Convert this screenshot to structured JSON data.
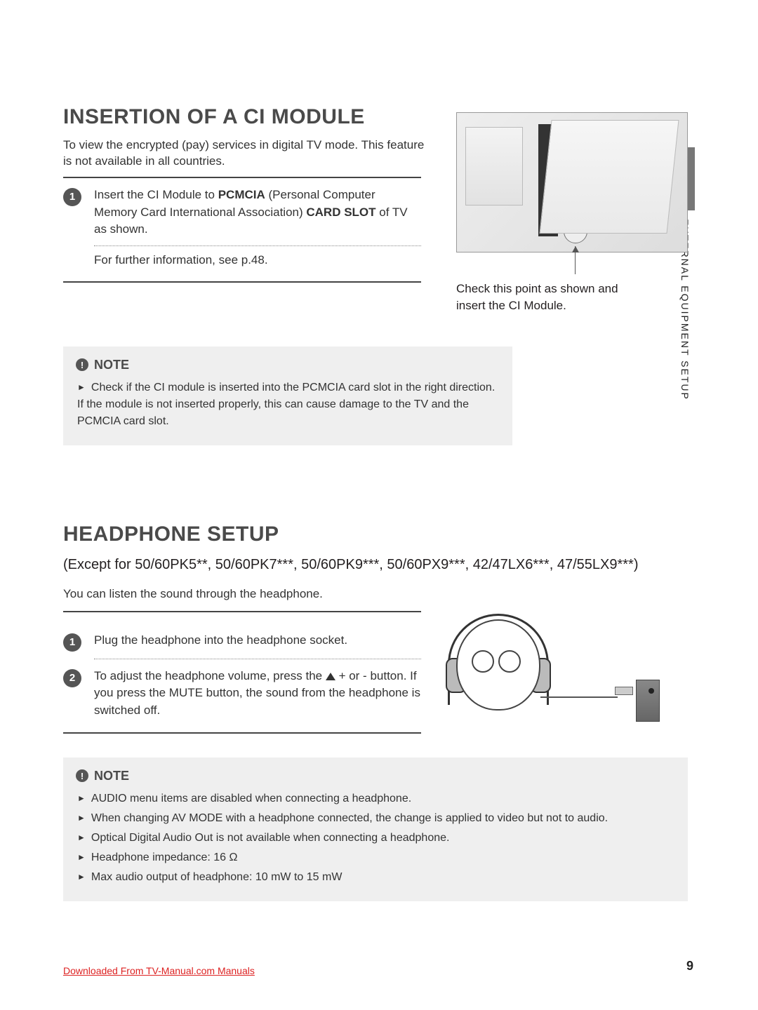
{
  "sideTab": {
    "label": "EXTERNAL EQUIPMENT SETUP"
  },
  "section1": {
    "title": "INSERTION OF A CI MODULE",
    "intro": "To view the encrypted (pay) services in digital TV mode. This feature is not available in all countries.",
    "steps": [
      {
        "num": "1",
        "html": "Insert the CI Module to <b>PCMCIA</b> (Personal Computer Memory Card International Association) <b>CARD SLOT</b> of TV as shown."
      }
    ],
    "afterStep": "For further information, see p.48.",
    "figureCaption": "Check this point as shown and insert the CI Module.",
    "note": {
      "title": "NOTE",
      "items": [
        "Check if the CI module is inserted into the PCMCIA card slot in the right direction. If the module is not inserted properly, this can cause damage to the TV and the PCMCIA card slot."
      ]
    }
  },
  "section2": {
    "title": "HEADPHONE SETUP",
    "subtitle": "(Except for 50/60PK5**, 50/60PK7***, 50/60PK9***, 50/60PX9***, 42/47LX6***, 47/55LX9***)",
    "intro": "You can listen the sound through the headphone.",
    "steps": [
      {
        "num": "1",
        "text": "Plug the headphone into the headphone socket."
      },
      {
        "num": "2",
        "html": "To adjust the headphone volume, press the <span class=\"tri-glyph\"></span> + or - button. If you press the MUTE button, the sound from the headphone is switched off."
      }
    ],
    "note": {
      "title": "NOTE",
      "items": [
        "AUDIO menu items are disabled when connecting a headphone.",
        "When changing AV MODE with a headphone connected, the change is applied to video but not to audio.",
        "Optical Digital Audio Out is not available when connecting a headphone.",
        "Headphone impedance: 16 Ω",
        "Max audio output of headphone: 10 mW to 15 mW"
      ]
    }
  },
  "pageNumber": "9",
  "footer": "Downloaded From TV-Manual.com Manuals"
}
